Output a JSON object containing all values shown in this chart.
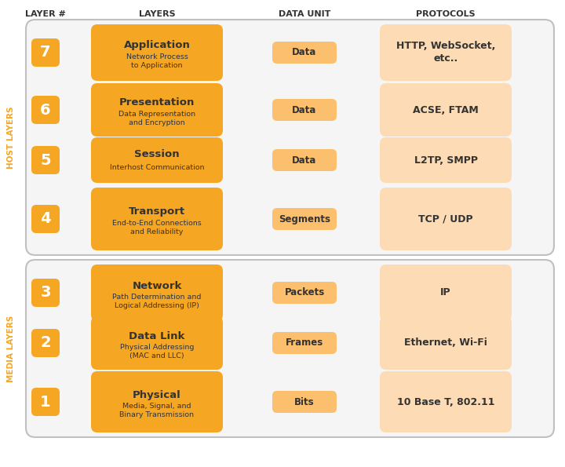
{
  "title_row": [
    "LAYER #",
    "LAYERS",
    "DATA UNIT",
    "PROTOCOLS"
  ],
  "host_label": "HOST LAYERS",
  "media_label": "MEDIA LAYERS",
  "layers": [
    {
      "num": "7",
      "name": "Application",
      "desc": "Network Process\nto Application",
      "unit": "Data",
      "protocols": "HTTP, WebSocket,\netc..",
      "group": "host",
      "unit_orange": true
    },
    {
      "num": "6",
      "name": "Presentation",
      "desc": "Data Representation\nand Encryption",
      "unit": "Data",
      "protocols": "ACSE, FTAM",
      "group": "host",
      "unit_orange": true
    },
    {
      "num": "5",
      "name": "Session",
      "desc": "Interhost Communication",
      "unit": "Data",
      "protocols": "L2TP, SMPP",
      "group": "host",
      "unit_orange": true
    },
    {
      "num": "4",
      "name": "Transport",
      "desc": "End-to-End Connections\nand Reliability",
      "unit": "Segments",
      "protocols": "TCP / UDP",
      "group": "host",
      "unit_orange": true
    },
    {
      "num": "3",
      "name": "Network",
      "desc": "Path Determination and\nLogical Addressing (IP)",
      "unit": "Packets",
      "protocols": "IP",
      "group": "media",
      "unit_orange": true
    },
    {
      "num": "2",
      "name": "Data Link",
      "desc": "Physical Addressing\n(MAC and LLC)",
      "unit": "Frames",
      "protocols": "Ethernet, Wi-Fi",
      "group": "media",
      "unit_orange": true
    },
    {
      "num": "1",
      "name": "Physical",
      "desc": "Media, Signal, and\nBinary Transmission",
      "unit": "Bits",
      "protocols": "10 Base T, 802.11",
      "group": "media",
      "unit_orange": true
    }
  ],
  "colors": {
    "orange": "#F5A623",
    "orange_light_unit": "#FBBF6E",
    "orange_light_proto": "#FDDCB5",
    "bg_box": "#F5F5F5",
    "border": "#C0C0C0",
    "text_dark": "#333333",
    "text_orange": "#F5A623",
    "text_white": "#FFFFFF",
    "white": "#FFFFFF"
  },
  "figw": 7.2,
  "figh": 5.95,
  "dpi": 100
}
